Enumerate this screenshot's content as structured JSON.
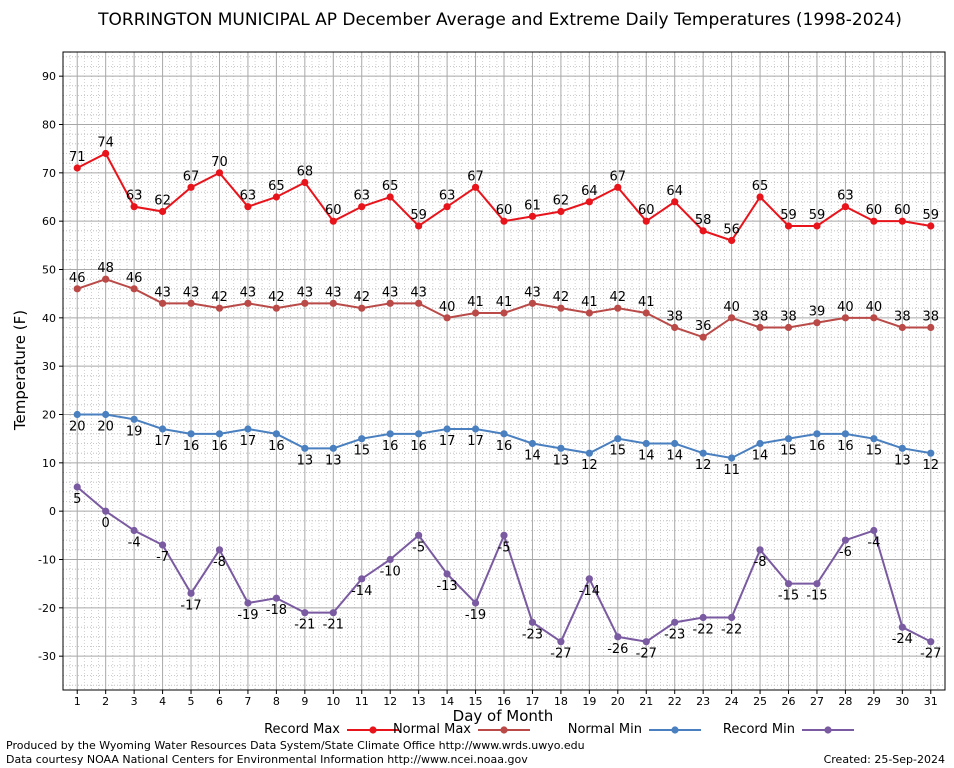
{
  "chart_data": {
    "type": "line",
    "title": "TORRINGTON MUNICIPAL AP December Average and Extreme Daily Temperatures (1998-2024)",
    "xlabel": "Day of Month",
    "ylabel": "Temperature (F)",
    "ylim": [
      -37,
      95
    ],
    "y_ticks": [
      -30,
      -20,
      -10,
      0,
      10,
      20,
      30,
      40,
      50,
      60,
      70,
      80,
      90
    ],
    "grid": true,
    "legend_position": "bottom",
    "x": [
      1,
      2,
      3,
      4,
      5,
      6,
      7,
      8,
      9,
      10,
      11,
      12,
      13,
      14,
      15,
      16,
      17,
      18,
      19,
      20,
      21,
      22,
      23,
      24,
      25,
      26,
      27,
      28,
      29,
      30,
      31
    ],
    "series": [
      {
        "name": "Record Max",
        "color": "#e8141c",
        "label_position": "above",
        "values": [
          71,
          74,
          63,
          62,
          67,
          70,
          63,
          65,
          68,
          60,
          63,
          65,
          59,
          63,
          67,
          60,
          61,
          62,
          64,
          67,
          60,
          64,
          58,
          56,
          65,
          59,
          59,
          63,
          60,
          60,
          59
        ]
      },
      {
        "name": "Normal Max",
        "color": "#b94a48",
        "label_position": "above",
        "values": [
          46,
          48,
          46,
          43,
          43,
          42,
          43,
          42,
          43,
          43,
          42,
          43,
          43,
          40,
          41,
          41,
          43,
          42,
          41,
          42,
          41,
          38,
          36,
          40,
          38,
          38,
          39,
          40,
          40,
          38,
          38
        ]
      },
      {
        "name": "Normal Min",
        "color": "#4a80c0",
        "label_position": "below",
        "values": [
          20,
          20,
          19,
          17,
          16,
          16,
          17,
          16,
          13,
          13,
          15,
          16,
          16,
          17,
          17,
          16,
          14,
          13,
          12,
          15,
          14,
          14,
          12,
          11,
          14,
          15,
          16,
          16,
          15,
          13,
          12
        ]
      },
      {
        "name": "Record Min",
        "color": "#7a5aa0",
        "label_position": "below",
        "values": [
          5,
          0,
          -4,
          -7,
          -17,
          -8,
          -19,
          -18,
          -21,
          -21,
          -14,
          -10,
          -5,
          -13,
          -19,
          -5,
          -23,
          -27,
          -14,
          -26,
          -27,
          -23,
          -22,
          -22,
          -8,
          -15,
          -15,
          -6,
          -4,
          -24,
          -27
        ]
      }
    ]
  },
  "footer": {
    "produced_by": "Produced by the Wyoming Water Resources Data System/State Climate Office http://www.wrds.uwyo.edu",
    "data_courtesy": "Data courtesy NOAA National Centers for Environmental Information http://www.ncei.noaa.gov",
    "created": "Created: 25-Sep-2024"
  }
}
